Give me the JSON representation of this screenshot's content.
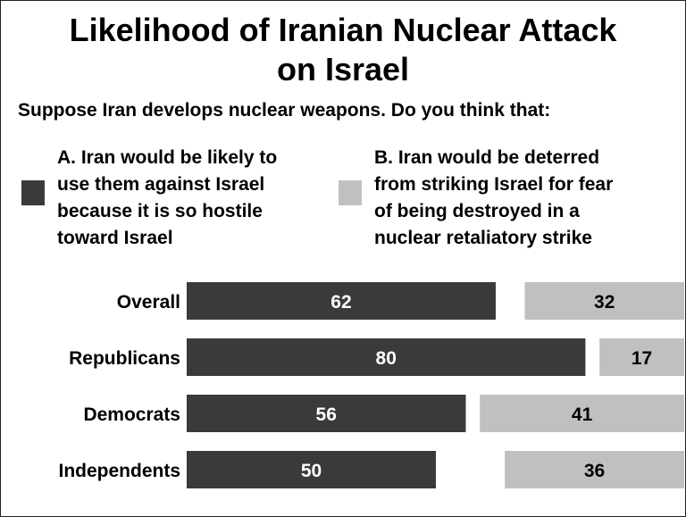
{
  "chart_data": {
    "type": "bar",
    "title": [
      "Likelihood of Iranian Nuclear Attack",
      "on Israel"
    ],
    "subtitle": "Suppose Iran develops nuclear weapons.  Do you think that:",
    "categories": [
      "Overall",
      "Republicans",
      "Democrats",
      "Independents"
    ],
    "series": [
      {
        "label_lines": [
          "A. Iran would be likely to",
          "use them against Israel",
          "because it is so hostile",
          "toward Israel"
        ],
        "color": "#3a3a3a",
        "values": [
          62,
          80,
          56,
          50
        ]
      },
      {
        "label_lines": [
          "B. Iran would be deterred",
          "from striking Israel for fear",
          "of being destroyed in a",
          "nuclear retaliatory strike"
        ],
        "color": "#c0c0c0",
        "values": [
          32,
          17,
          41,
          36
        ]
      }
    ],
    "xlim": [
      0,
      100
    ],
    "grid": false,
    "legend_position": "top"
  }
}
